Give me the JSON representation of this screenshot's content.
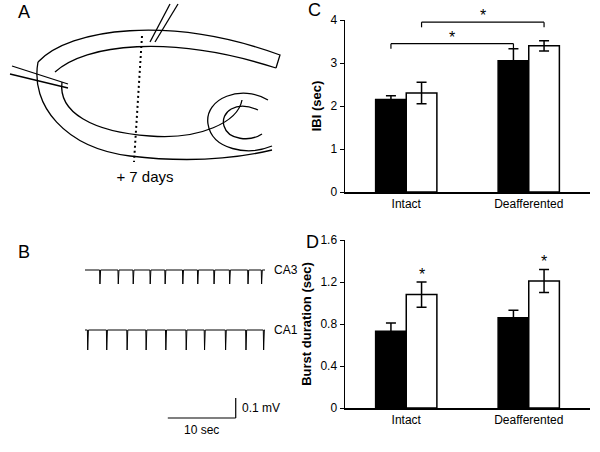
{
  "panel_labels": [
    "A",
    "B",
    "C",
    "D"
  ],
  "diagram": {
    "label": "+ 7 days"
  },
  "recordings": {
    "xlim": [
      0,
      26.5
    ],
    "traces": [
      {
        "name": "CA3",
        "color": "#000000",
        "ylim": [
          -0.15,
          0.075
        ],
        "amplitude": 0.07,
        "event_times": [
          2.2,
          4.9,
          7.1,
          9.6,
          11.8,
          14.4,
          16.6,
          19.0,
          21.3,
          24.0,
          26.0
        ]
      },
      {
        "name": "CA1",
        "color": "#000000",
        "ylim": [
          -0.5,
          0.1
        ],
        "amplitude": 0.1,
        "event_times": [
          0.4,
          3.2,
          6.2,
          9.0,
          11.9,
          14.9,
          17.6,
          20.7,
          23.7,
          26.3
        ]
      }
    ],
    "scale_bar": {
      "time": 10,
      "time_label": "10 sec",
      "voltage": 0.1,
      "voltage_label": "0.1 mV"
    }
  },
  "chart_data": [
    {
      "type": "bar",
      "categories": [
        "Intact",
        "Deafferented"
      ],
      "y_label": "IBI (sec)",
      "ylim": [
        0,
        4
      ],
      "yticks": [
        0,
        1,
        2,
        3,
        4
      ],
      "grid": false,
      "series": [
        {
          "color": "#000000",
          "values": [
            2.15,
            3.05
          ],
          "errors": [
            0.09,
            0.28
          ]
        },
        {
          "color": "#ffffff",
          "values": [
            2.3,
            3.4
          ],
          "errors": [
            0.25,
            0.12
          ]
        }
      ],
      "brackets": [
        {
          "from": [
            0,
            0
          ],
          "to": [
            1,
            0
          ],
          "y": 3.45,
          "label": "*"
        },
        {
          "from": [
            0,
            1
          ],
          "to": [
            1,
            1
          ],
          "y": 3.95,
          "label": "*"
        }
      ]
    },
    {
      "type": "bar",
      "categories": [
        "Intact",
        "Deafferented"
      ],
      "y_label": "Burst duration (sec)",
      "ylim": [
        0,
        1.6
      ],
      "yticks": [
        0,
        0.4,
        0.8,
        1.2,
        1.6
      ],
      "grid": false,
      "series": [
        {
          "color": "#000000",
          "values": [
            0.73,
            0.86
          ],
          "errors": [
            0.08,
            0.07
          ]
        },
        {
          "color": "#ffffff",
          "values": [
            1.08,
            1.21
          ],
          "errors": [
            0.12,
            0.11
          ]
        }
      ],
      "annotations": [
        {
          "category": "Intact",
          "series": 1,
          "text": "*"
        },
        {
          "category": "Deafferented",
          "series": 1,
          "text": "*"
        }
      ]
    }
  ]
}
